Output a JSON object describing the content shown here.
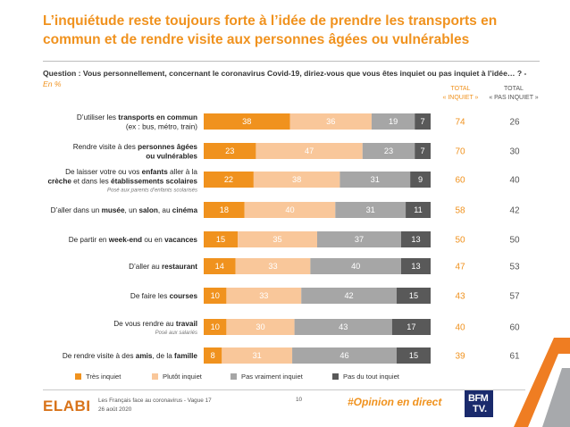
{
  "title": "L’inquiétude reste toujours forte à l’idée de prendre les transports en commun et de rendre visite aux personnes âgées ou vulnérables",
  "question": {
    "text": "Question : Vous personnellement, concernant le coronavirus Covid-19, diriez-vous que vous êtes inquiet ou pas inquiet à l’idée… ? - ",
    "unit": "En %"
  },
  "columns": {
    "total_inquiet": [
      "TOTAL",
      "« INQUIET »"
    ],
    "total_pas_inquiet": [
      "TOTAL",
      "« PAS INQUIET »"
    ]
  },
  "colors": {
    "tres_inquiet": "#f0921e",
    "plutot_inquiet": "#f9c79a",
    "pas_vraiment_inquiet": "#a6a6a6",
    "pas_du_tout_inquiet": "#595959",
    "accent": "#f0921e"
  },
  "chart_data": {
    "type": "bar",
    "orientation": "horizontal",
    "stacked": true,
    "categories": [
      "D’utiliser les transports en commun (ex : bus, métro, train)",
      "Rendre visite à des personnes âgées ou vulnérables",
      "De laisser votre ou vos enfants aller à la crèche et dans les établissements scolaires",
      "D’aller dans un musée, un salon, au cinéma",
      "De partir en week-end ou en vacances",
      "D’aller au restaurant",
      "De faire les courses",
      "De vous rendre au travail",
      "De rendre visite à des amis, de la famille"
    ],
    "label_lines": [
      [
        [
          {
            "t": "D’utiliser les ",
            "b": false
          },
          {
            "t": "transports en commun",
            "b": true
          }
        ],
        [
          {
            "t": "(ex : bus, métro, train)",
            "b": false
          }
        ]
      ],
      [
        [
          {
            "t": "Rendre visite à des ",
            "b": false
          },
          {
            "t": "personnes âgées",
            "b": true
          }
        ],
        [
          {
            "t": "ou vulnérables",
            "b": true
          }
        ]
      ],
      [
        [
          {
            "t": "De laisser votre ou vos ",
            "b": false
          },
          {
            "t": "enfants",
            "b": true
          },
          {
            "t": " aller à la",
            "b": false
          }
        ],
        [
          {
            "t": "crèche",
            "b": true
          },
          {
            "t": " et dans les ",
            "b": false
          },
          {
            "t": "établissements scolaires",
            "b": true
          }
        ]
      ],
      [
        [
          {
            "t": "D’aller dans un ",
            "b": false
          },
          {
            "t": "musée",
            "b": true
          },
          {
            "t": ", un ",
            "b": false
          },
          {
            "t": "salon",
            "b": true
          },
          {
            "t": ", au ",
            "b": false
          },
          {
            "t": "cinéma",
            "b": true
          }
        ]
      ],
      [
        [
          {
            "t": "De partir en ",
            "b": false
          },
          {
            "t": "week-end",
            "b": true
          },
          {
            "t": " ou en ",
            "b": false
          },
          {
            "t": "vacances",
            "b": true
          }
        ]
      ],
      [
        [
          {
            "t": "D’aller au ",
            "b": false
          },
          {
            "t": "restaurant",
            "b": true
          }
        ]
      ],
      [
        [
          {
            "t": "De faire les ",
            "b": false
          },
          {
            "t": "courses",
            "b": true
          }
        ]
      ],
      [
        [
          {
            "t": "De vous rendre au ",
            "b": false
          },
          {
            "t": "travail",
            "b": true
          }
        ]
      ],
      [
        [
          {
            "t": "De rendre visite à des ",
            "b": false
          },
          {
            "t": "amis",
            "b": true
          },
          {
            "t": ", de la ",
            "b": false
          },
          {
            "t": "famille",
            "b": true
          }
        ]
      ]
    ],
    "sublabels": [
      "",
      "",
      "Posé aux parents d’enfants scolarisés",
      "",
      "",
      "",
      "",
      "Posé aux salariés",
      ""
    ],
    "series": [
      {
        "name": "Très inquiet",
        "values": [
          38,
          23,
          22,
          18,
          15,
          14,
          10,
          10,
          8
        ]
      },
      {
        "name": "Plutôt inquiet",
        "values": [
          36,
          47,
          38,
          40,
          35,
          33,
          33,
          30,
          31
        ]
      },
      {
        "name": "Pas vraiment inquiet",
        "values": [
          19,
          23,
          31,
          31,
          37,
          40,
          42,
          43,
          46
        ]
      },
      {
        "name": "Pas du tout inquiet",
        "values": [
          7,
          7,
          9,
          11,
          13,
          13,
          15,
          17,
          15
        ]
      }
    ],
    "total_inquiet": [
      74,
      70,
      60,
      58,
      50,
      47,
      43,
      40,
      39
    ],
    "total_pas_inquiet": [
      26,
      30,
      40,
      42,
      50,
      53,
      57,
      60,
      61
    ],
    "xlim": [
      0,
      100
    ]
  },
  "legend": [
    "Très inquiet",
    "Plutôt inquiet",
    "Pas vraiment inquiet",
    "Pas du tout inquiet"
  ],
  "footer": {
    "brand": "ELABE",
    "source": "Les Français face au coronavirus - Vague 17",
    "date": "26 août 2020",
    "page": "10",
    "hashtag": "#Opinion en direct",
    "partner_line1": "BFM",
    "partner_line2": "TV."
  }
}
